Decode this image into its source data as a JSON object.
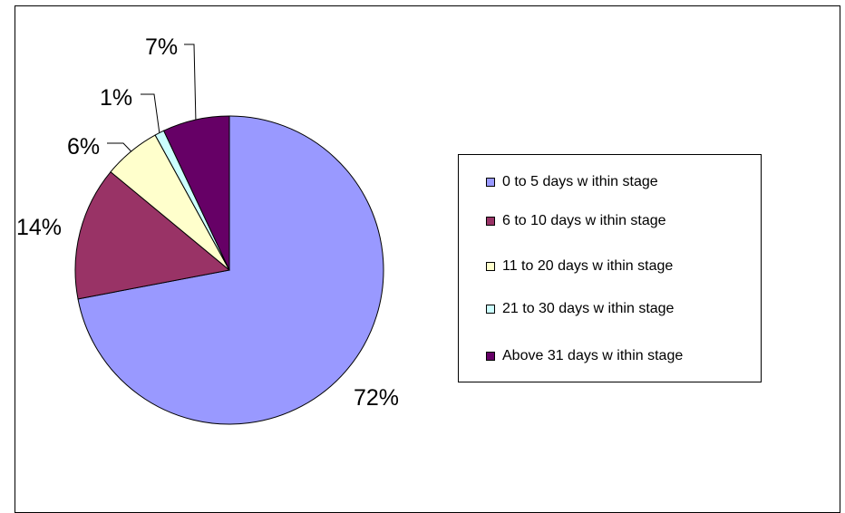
{
  "chart_data": {
    "type": "pie",
    "categories": [
      "0 to 5 days w ithin stage",
      "6 to 10 days w ithin stage",
      "11 to 20 days w ithin stage",
      "21 to 30 days w ithin stage",
      "Above 31  days w ithin stage"
    ],
    "values": [
      72,
      14,
      6,
      1,
      7
    ],
    "labels": [
      "72%",
      "14%",
      "6%",
      "1%",
      "7%"
    ],
    "colors": [
      "#9999ff",
      "#993366",
      "#ffffcc",
      "#ccffff",
      "#660066"
    ],
    "legend_position": "right",
    "start": "12 o'clock",
    "direction": "clockwise"
  }
}
